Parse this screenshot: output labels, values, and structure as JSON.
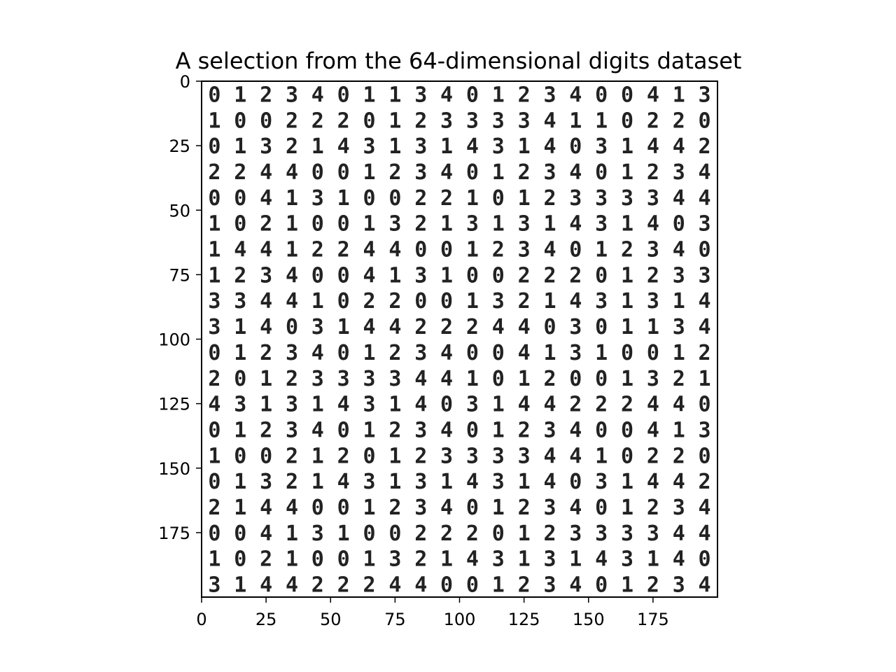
{
  "chart_data": {
    "type": "heatmap",
    "title": "A selection from the 64-dimensional digits dataset",
    "xlabel": "",
    "ylabel": "",
    "xlim": [
      0,
      200
    ],
    "ylim": [
      200,
      0
    ],
    "x_ticks": [
      0,
      25,
      50,
      75,
      100,
      125,
      150,
      175
    ],
    "y_ticks": [
      0,
      25,
      50,
      75,
      100,
      125,
      150,
      175
    ],
    "grid": false,
    "colormap": "binary",
    "tile_size": 10,
    "digit_grid": [
      [
        "0",
        "1",
        "2",
        "3",
        "4",
        "0",
        "1",
        "1",
        "3",
        "4",
        "0",
        "1",
        "2",
        "3",
        "4",
        "0",
        "0",
        "4",
        "1",
        "3"
      ],
      [
        "1",
        "0",
        "0",
        "2",
        "2",
        "2",
        "0",
        "1",
        "2",
        "3",
        "3",
        "3",
        "3",
        "4",
        "1",
        "1",
        "0",
        "2",
        "2",
        "0"
      ],
      [
        "0",
        "1",
        "3",
        "2",
        "1",
        "4",
        "3",
        "1",
        "3",
        "1",
        "4",
        "3",
        "1",
        "4",
        "0",
        "3",
        "1",
        "4",
        "4",
        "2"
      ],
      [
        "2",
        "2",
        "4",
        "4",
        "0",
        "0",
        "1",
        "2",
        "3",
        "4",
        "0",
        "1",
        "2",
        "3",
        "4",
        "0",
        "1",
        "2",
        "3",
        "4"
      ],
      [
        "0",
        "0",
        "4",
        "1",
        "3",
        "1",
        "0",
        "0",
        "2",
        "2",
        "1",
        "0",
        "1",
        "2",
        "3",
        "3",
        "3",
        "3",
        "4",
        "4"
      ],
      [
        "1",
        "0",
        "2",
        "1",
        "0",
        "0",
        "1",
        "3",
        "2",
        "1",
        "3",
        "1",
        "3",
        "1",
        "4",
        "3",
        "1",
        "4",
        "0",
        "3"
      ],
      [
        "1",
        "4",
        "4",
        "1",
        "2",
        "2",
        "4",
        "4",
        "0",
        "0",
        "1",
        "2",
        "3",
        "4",
        "0",
        "1",
        "2",
        "3",
        "4",
        "0"
      ],
      [
        "1",
        "2",
        "3",
        "4",
        "0",
        "0",
        "4",
        "1",
        "3",
        "1",
        "0",
        "0",
        "2",
        "2",
        "2",
        "0",
        "1",
        "2",
        "3",
        "3"
      ],
      [
        "3",
        "3",
        "4",
        "4",
        "1",
        "0",
        "2",
        "2",
        "0",
        "0",
        "1",
        "3",
        "2",
        "1",
        "4",
        "3",
        "1",
        "3",
        "1",
        "4"
      ],
      [
        "3",
        "1",
        "4",
        "0",
        "3",
        "1",
        "4",
        "4",
        "2",
        "2",
        "2",
        "4",
        "4",
        "0",
        "3",
        "0",
        "1",
        "1",
        "3",
        "4"
      ],
      [
        "0",
        "1",
        "2",
        "3",
        "4",
        "0",
        "1",
        "2",
        "3",
        "4",
        "0",
        "0",
        "4",
        "1",
        "3",
        "1",
        "0",
        "0",
        "1",
        "2"
      ],
      [
        "2",
        "0",
        "1",
        "2",
        "3",
        "3",
        "3",
        "3",
        "4",
        "4",
        "1",
        "0",
        "1",
        "2",
        "0",
        "0",
        "1",
        "3",
        "2",
        "1"
      ],
      [
        "4",
        "3",
        "1",
        "3",
        "1",
        "4",
        "3",
        "1",
        "4",
        "0",
        "3",
        "1",
        "4",
        "4",
        "2",
        "2",
        "2",
        "4",
        "4",
        "0"
      ],
      [
        "0",
        "1",
        "2",
        "3",
        "4",
        "0",
        "1",
        "2",
        "3",
        "4",
        "0",
        "1",
        "2",
        "3",
        "4",
        "0",
        "0",
        "4",
        "1",
        "3"
      ],
      [
        "1",
        "0",
        "0",
        "2",
        "1",
        "2",
        "0",
        "1",
        "2",
        "3",
        "3",
        "3",
        "3",
        "4",
        "4",
        "1",
        "0",
        "2",
        "2",
        "0"
      ],
      [
        "0",
        "1",
        "3",
        "2",
        "1",
        "4",
        "3",
        "1",
        "3",
        "1",
        "4",
        "3",
        "1",
        "4",
        "0",
        "3",
        "1",
        "4",
        "4",
        "2"
      ],
      [
        "2",
        "1",
        "4",
        "4",
        "0",
        "0",
        "1",
        "2",
        "3",
        "4",
        "0",
        "1",
        "2",
        "3",
        "4",
        "0",
        "1",
        "2",
        "3",
        "4"
      ],
      [
        "0",
        "0",
        "4",
        "1",
        "3",
        "1",
        "0",
        "0",
        "2",
        "2",
        "2",
        "0",
        "1",
        "2",
        "3",
        "3",
        "3",
        "3",
        "4",
        "4"
      ],
      [
        "1",
        "0",
        "2",
        "1",
        "0",
        "0",
        "1",
        "3",
        "2",
        "1",
        "4",
        "3",
        "1",
        "3",
        "1",
        "4",
        "3",
        "1",
        "4",
        "0"
      ],
      [
        "3",
        "1",
        "4",
        "4",
        "2",
        "2",
        "2",
        "4",
        "4",
        "0",
        "0",
        "1",
        "2",
        "3",
        "4",
        "0",
        "1",
        "2",
        "3",
        "4"
      ]
    ]
  }
}
